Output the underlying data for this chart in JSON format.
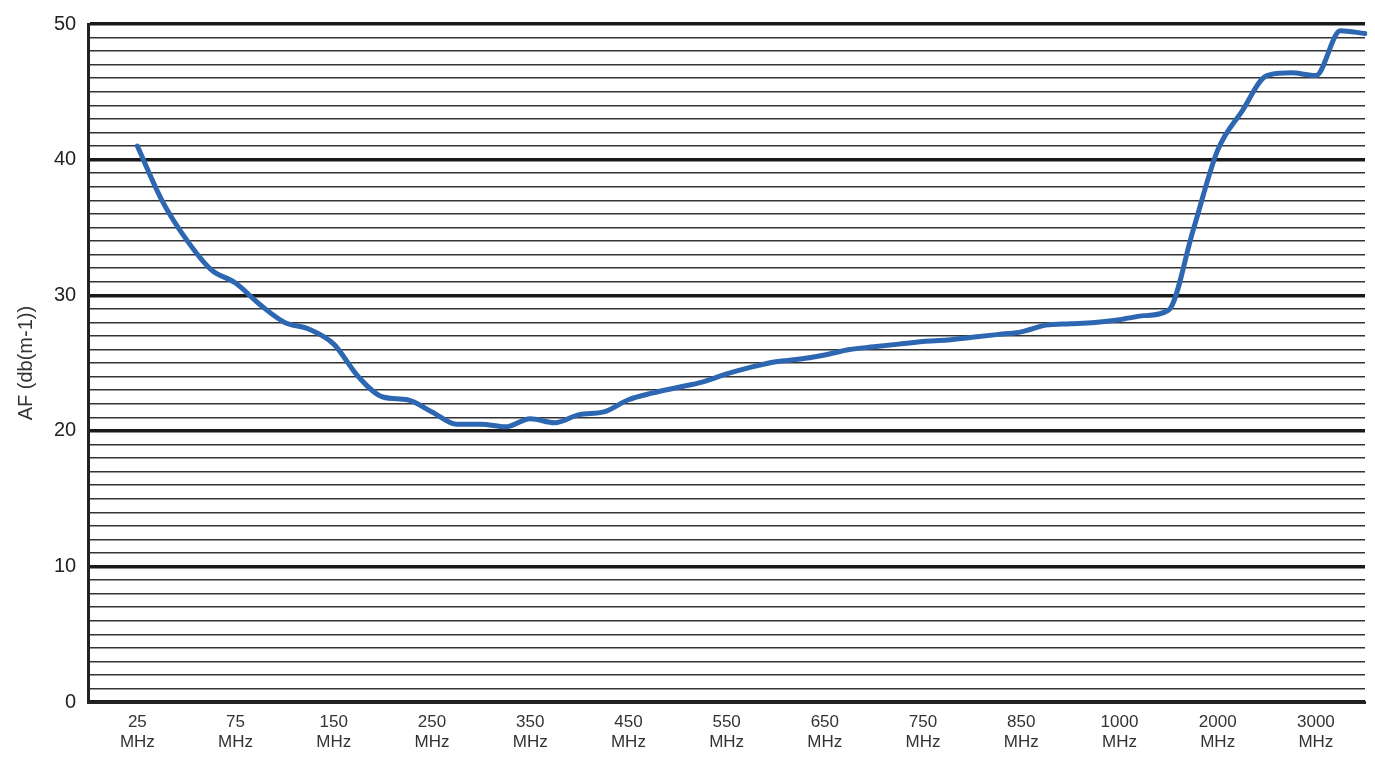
{
  "chart_data": {
    "type": "line",
    "ylabel": "AF (db(m-1))",
    "categories": [
      null,
      null,
      "25 MHz",
      null,
      null,
      null,
      "75 MHz",
      null,
      null,
      null,
      "150 MHz",
      null,
      null,
      null,
      "250 MHz",
      null,
      null,
      null,
      "350 MHz",
      null,
      null,
      null,
      "450 MHz",
      null,
      null,
      null,
      "550 MHz",
      null,
      null,
      null,
      "650 MHz",
      null,
      null,
      null,
      "750 MHz",
      null,
      null,
      null,
      "850 MHz",
      null,
      null,
      null,
      "1000 MHz",
      null,
      null,
      null,
      "2000 MHz",
      null,
      null,
      null,
      "3000 MHz",
      null,
      null
    ],
    "series": [
      {
        "color": "#2e67b1",
        "values": [
          null,
          null,
          41,
          37.0,
          34.1,
          31.9,
          30.9,
          29.3,
          28.0,
          27.5,
          26.4,
          24.0,
          22.5,
          22.3,
          21.4,
          20.5,
          20.5,
          20.3,
          20.9,
          20.6,
          21.2,
          21.4,
          22.3,
          22.8,
          23.2,
          23.6,
          24.2,
          24.7,
          25.1,
          25.3,
          25.6,
          26.0,
          26.2,
          26.4,
          26.6,
          26.7,
          26.9,
          27.1,
          27.3,
          27.8,
          27.9,
          28.0,
          28.2,
          28.5,
          28.9,
          34.8,
          40.7,
          43.6,
          46.2,
          46.4,
          46.2,
          49.5,
          49.3
        ]
      }
    ],
    "ylim": [
      0,
      50
    ],
    "yticks": [
      0,
      {
        "value": 1,
        "label": null
      },
      {
        "value": 2,
        "label": null
      },
      {
        "value": 3,
        "label": null
      },
      {
        "value": 4,
        "label": null
      },
      {
        "value": 5,
        "label": null
      },
      {
        "value": 6,
        "label": null
      },
      {
        "value": 7,
        "label": null
      },
      {
        "value": 8,
        "label": null
      },
      {
        "value": 9,
        "label": null
      },
      10,
      {
        "value": 11,
        "label": null
      },
      {
        "value": 12,
        "label": null
      },
      {
        "value": 13,
        "label": null
      },
      {
        "value": 14,
        "label": null
      },
      {
        "value": 15,
        "label": null
      },
      {
        "value": 16,
        "label": null
      },
      {
        "value": 17,
        "label": null
      },
      {
        "value": 18,
        "label": null
      },
      {
        "value": 19,
        "label": null
      },
      20,
      {
        "value": 21,
        "label": null
      },
      {
        "value": 22,
        "label": null
      },
      {
        "value": 23,
        "label": null
      },
      {
        "value": 24,
        "label": null
      },
      {
        "value": 25,
        "label": null
      },
      {
        "value": 26,
        "label": null
      },
      {
        "value": 27,
        "label": null
      },
      {
        "value": 28,
        "label": null
      },
      {
        "value": 29,
        "label": null
      },
      30,
      {
        "value": 31,
        "label": null
      },
      {
        "value": 32,
        "label": null
      },
      {
        "value": 33,
        "label": null
      },
      {
        "value": 34,
        "label": null
      },
      {
        "value": 35,
        "label": null
      },
      {
        "value": 36,
        "label": null
      },
      {
        "value": 37,
        "label": null
      },
      {
        "value": 38,
        "label": null
      },
      {
        "value": 39,
        "label": null
      },
      40,
      {
        "value": 41,
        "label": null
      },
      {
        "value": 42,
        "label": null
      },
      {
        "value": 43,
        "label": null
      },
      {
        "value": 44,
        "label": null
      },
      {
        "value": 45,
        "label": null
      },
      {
        "value": 46,
        "label": null
      },
      {
        "value": 47,
        "label": null
      },
      {
        "value": 48,
        "label": null
      },
      {
        "value": 49,
        "label": null
      },
      50
    ],
    "grid": "y",
    "legend": false,
    "marker": "none",
    "line_style": "solid"
  }
}
